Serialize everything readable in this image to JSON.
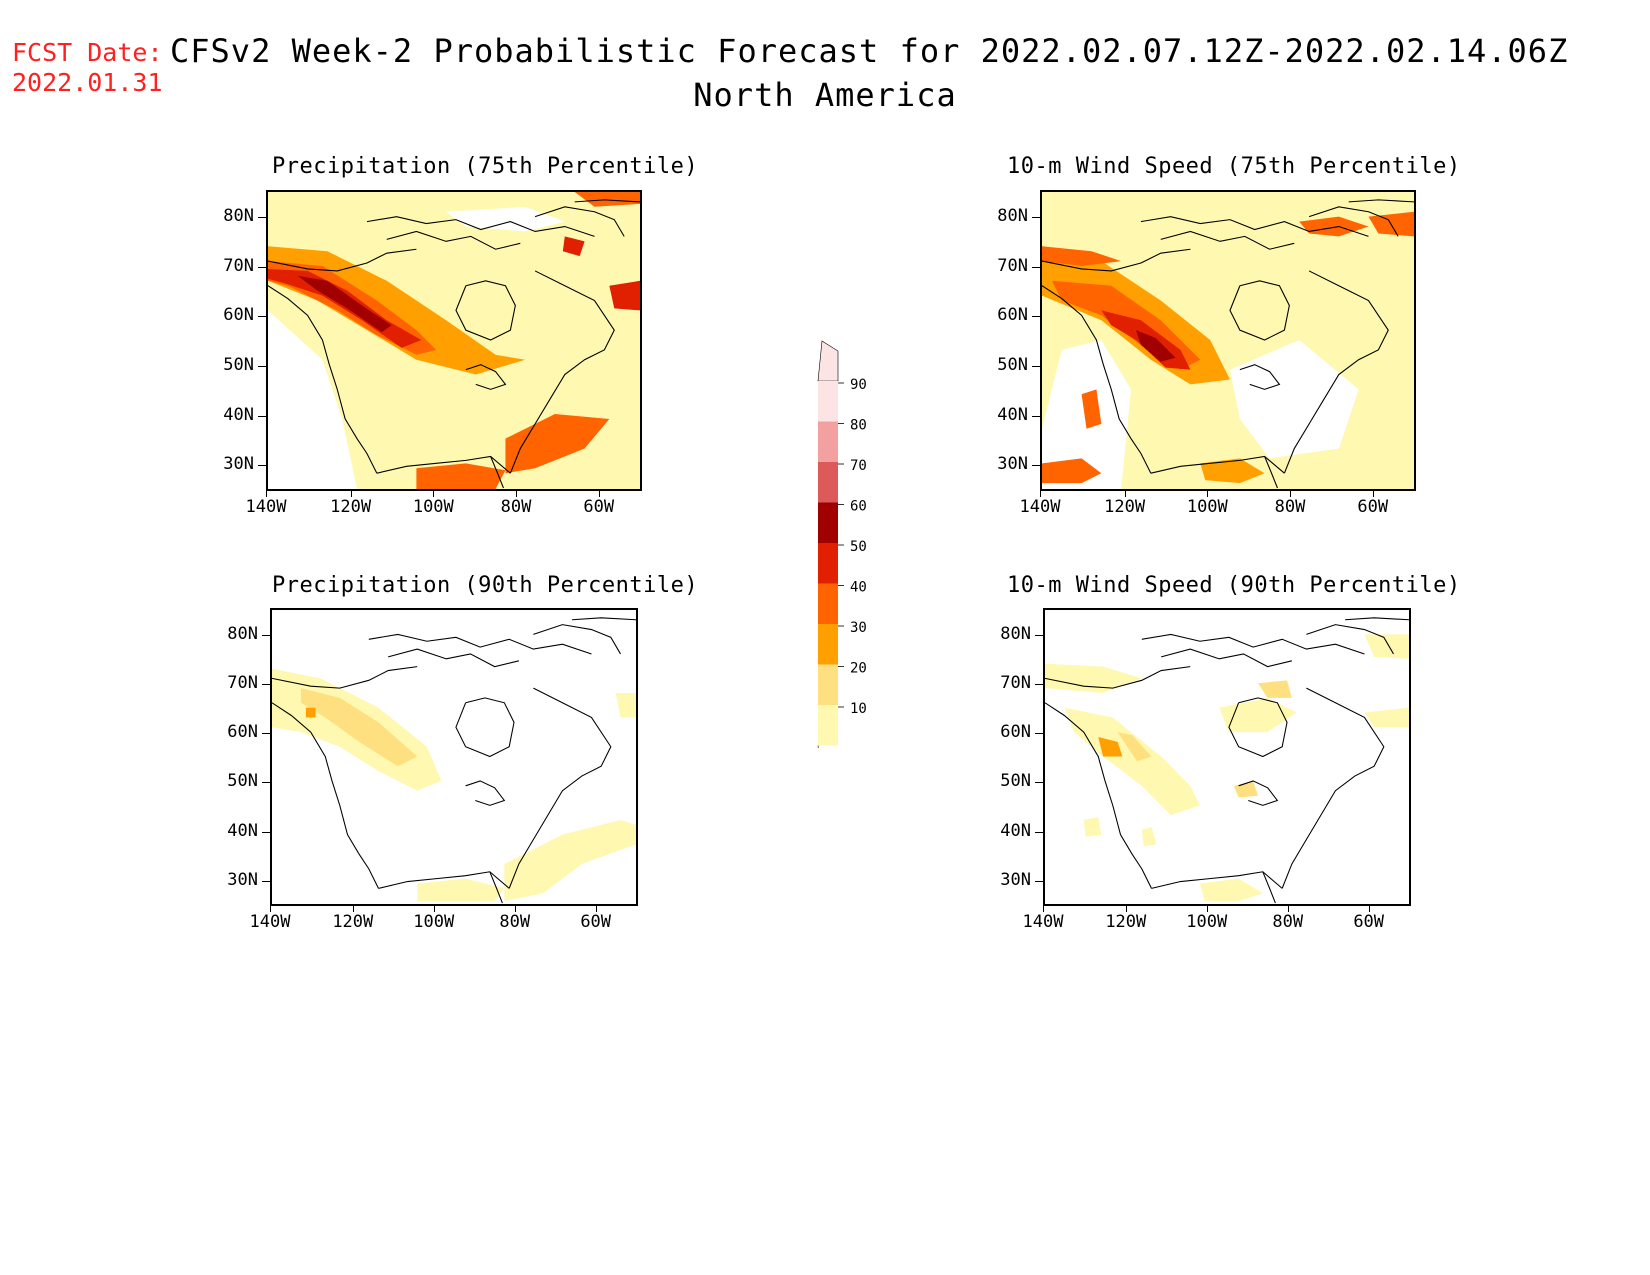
{
  "header": {
    "fcst_label": "FCST Date:",
    "fcst_date": "2022.01.31",
    "title": "CFSv2 Week-2 Probabilistic Forecast for 2022.02.07.12Z-2022.02.14.06Z",
    "subtitle": "North America"
  },
  "axes": {
    "lat_labels": [
      "80N",
      "70N",
      "60N",
      "50N",
      "40N",
      "30N"
    ],
    "lon_labels": [
      "140W",
      "120W",
      "100W",
      "80W",
      "60W"
    ]
  },
  "panels": [
    {
      "id": "precip-75",
      "title": "Precipitation (75th Percentile)"
    },
    {
      "id": "wind-75",
      "title": "10-m Wind Speed (75th Percentile)"
    },
    {
      "id": "precip-90",
      "title": "Precipitation (90th Percentile)"
    },
    {
      "id": "wind-90",
      "title": "10-m Wind Speed (90th Percentile)"
    }
  ],
  "colorbar": {
    "labels": [
      "90",
      "80",
      "70",
      "60",
      "50",
      "40",
      "30",
      "20",
      "10"
    ],
    "colors": [
      "#fde4e4",
      "#f3a0a0",
      "#dc5a5a",
      "#a10000",
      "#e02000",
      "#ff6400",
      "#ffa000",
      "#ffe080",
      "#fff8b0"
    ]
  }
}
